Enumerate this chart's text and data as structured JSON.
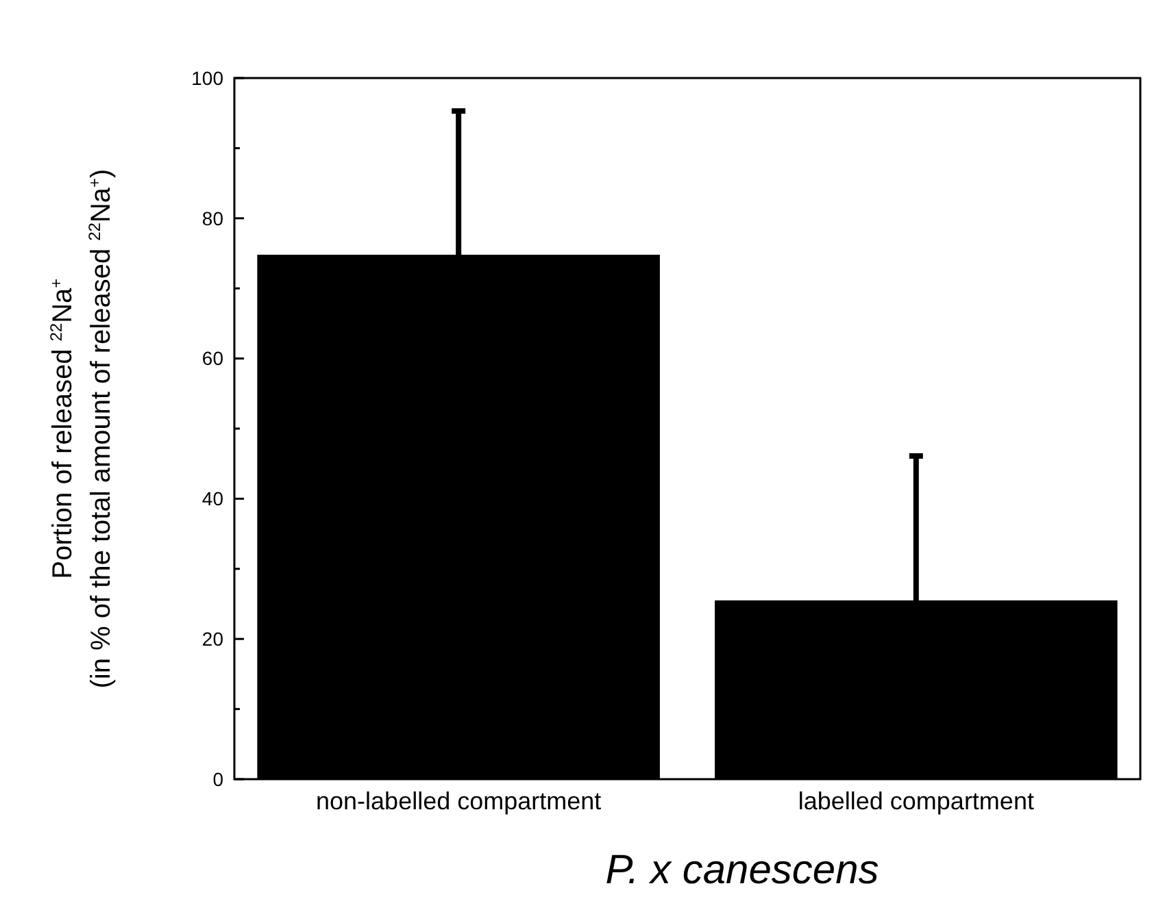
{
  "chart_data": {
    "type": "bar",
    "xlabel": "P. x canescens",
    "ylabel": "Portion of released $^{22}$Na$^{+}$\n(in % of the total amount of released $^{22}$Na$^{+}$)",
    "categories": [
      "non-labelled compartment",
      "labelled compartment"
    ],
    "values": [
      74.8,
      25.5
    ],
    "errors": [
      20.5,
      20.6
    ],
    "color": "#000000",
    "ylim": [
      0,
      100
    ],
    "yticks": [
      0,
      {
        "value": 10,
        "label": null
      },
      20,
      {
        "value": 30,
        "label": null
      },
      40,
      {
        "value": 50,
        "label": null
      },
      60,
      {
        "value": 70,
        "label": null
      },
      80,
      {
        "value": 90,
        "label": null
      },
      100
    ],
    "grid": false
  }
}
